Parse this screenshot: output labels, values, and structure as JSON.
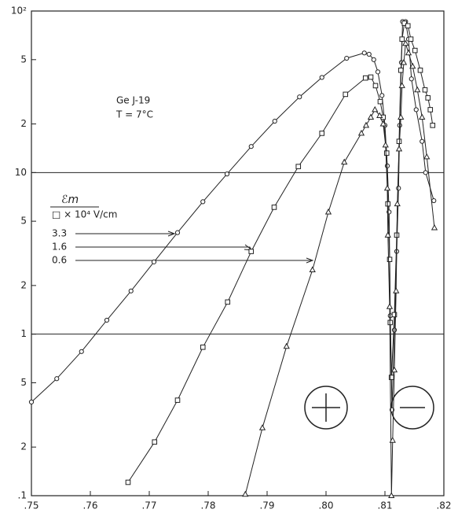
{
  "chart_data": {
    "type": "line",
    "log_y": true,
    "annotations": [
      "Ge J-19",
      "T = 7°C"
    ],
    "legend_title": "ℰm",
    "legend_unit": "□ × 10⁴ V/cm",
    "xlim": [
      0.75,
      0.82
    ],
    "ylim": [
      0.1,
      100
    ],
    "xticks": [
      {
        "value": 0.75,
        "label": ".75"
      },
      {
        "value": 0.76,
        "label": ".76"
      },
      {
        "value": 0.77,
        "label": ".77"
      },
      {
        "value": 0.78,
        "label": ".78"
      },
      {
        "value": 0.79,
        "label": ".79"
      },
      {
        "value": 0.8,
        "label": ".80"
      },
      {
        "value": 0.81,
        "label": ".81"
      },
      {
        "value": 0.82,
        "label": ".82"
      }
    ],
    "yticks": [
      {
        "value": 0.1,
        "label": ".1"
      },
      {
        "value": 0.2,
        "label": "2"
      },
      {
        "value": 0.5,
        "label": "5"
      },
      1,
      {
        "value": 2,
        "label": "2"
      },
      {
        "value": 5,
        "label": "5"
      },
      10,
      {
        "value": 20,
        "label": "2"
      },
      {
        "value": 50,
        "label": "5"
      },
      {
        "value": 100,
        "label": "10²"
      }
    ],
    "grid_y": [
      1,
      10
    ],
    "series": [
      {
        "name": "3.3",
        "marker": "circle",
        "color": "#222",
        "x": [
          0.75,
          0.7543,
          0.7585,
          0.7628,
          0.7669,
          0.7708,
          0.7748,
          0.7791,
          0.7832,
          0.7873,
          0.7913,
          0.7955,
          0.7993,
          0.8035,
          0.8065,
          0.8073,
          0.8081,
          0.8088,
          0.8095,
          0.81,
          0.8104,
          0.8107,
          0.8108,
          0.8109,
          0.8111,
          0.8112,
          0.8116,
          0.812,
          0.8123,
          0.8125,
          0.8128,
          0.813,
          0.8135,
          0.814,
          0.8145,
          0.8153,
          0.8163,
          0.8169,
          0.8183
        ],
        "values": [
          0.38,
          0.53,
          0.78,
          1.22,
          1.85,
          2.8,
          4.25,
          6.6,
          9.8,
          14.5,
          20.8,
          29.4,
          38.8,
          51,
          55,
          54,
          50,
          42,
          30,
          19.6,
          11,
          5.7,
          2.9,
          1.3,
          0.54,
          0.34,
          1.06,
          3.25,
          8,
          19.6,
          48,
          86,
          86,
          67,
          38,
          24.5,
          15.6,
          10,
          6.7
        ]
      },
      {
        "name": "1.6",
        "marker": "square",
        "color": "#222",
        "x": [
          0.7664,
          0.7709,
          0.7748,
          0.7791,
          0.7833,
          0.7873,
          0.7912,
          0.7953,
          0.7993,
          0.8033,
          0.8067,
          0.8076,
          0.8084,
          0.8092,
          0.8097,
          0.8103,
          0.8105,
          0.8108,
          0.8109,
          0.8111,
          0.8116,
          0.812,
          0.8124,
          0.8127,
          0.8129,
          0.8133,
          0.8139,
          0.8144,
          0.8151,
          0.816,
          0.8168,
          0.8173,
          0.8177,
          0.8181
        ],
        "values": [
          0.121,
          0.215,
          0.39,
          0.83,
          1.58,
          3.25,
          6.1,
          10.9,
          17.5,
          30.5,
          38.5,
          39,
          34.5,
          27.5,
          22,
          13.2,
          6.4,
          2.9,
          1.18,
          0.54,
          1.32,
          4.1,
          15.6,
          43,
          67,
          84,
          81,
          67,
          57,
          43,
          32.5,
          29,
          24.5,
          19.6
        ]
      },
      {
        "name": "0.6",
        "marker": "triangle",
        "color": "#222",
        "x": [
          0.7863,
          0.7892,
          0.7933,
          0.7977,
          0.8004,
          0.8031,
          0.806,
          0.8068,
          0.8076,
          0.8083,
          0.8091,
          0.8097,
          0.8101,
          0.8104,
          0.8105,
          0.8108,
          0.8111,
          0.8113,
          0.8116,
          0.8119,
          0.8121,
          0.8124,
          0.8127,
          0.8129,
          0.8132,
          0.8135,
          0.814,
          0.8147,
          0.8155,
          0.8163,
          0.8171,
          0.8184
        ],
        "values": [
          0.102,
          0.263,
          0.84,
          2.5,
          5.7,
          11.6,
          17.5,
          19.6,
          22,
          24.5,
          22.5,
          20,
          14.8,
          8,
          4.1,
          1.48,
          0.1,
          0.22,
          0.6,
          1.85,
          6.4,
          14,
          22,
          34.5,
          48,
          63,
          55,
          45.5,
          32.5,
          22,
          12.5,
          4.55
        ]
      }
    ]
  }
}
